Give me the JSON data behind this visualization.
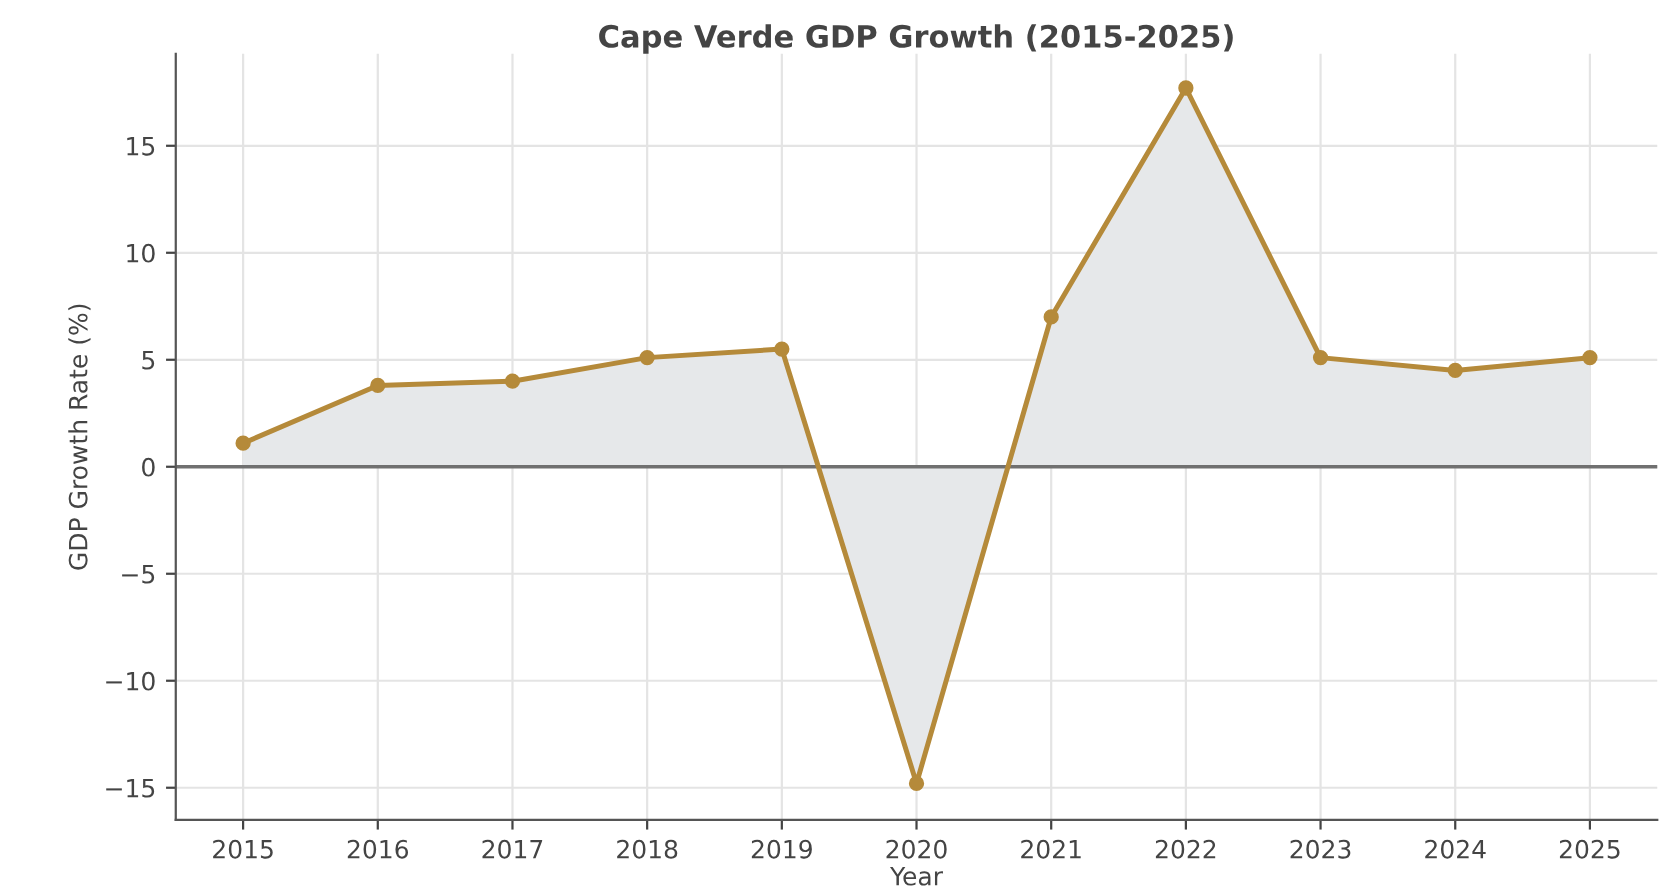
{
  "chart_data": {
    "type": "area",
    "title": "Cape Verde GDP Growth (2015-2025)",
    "xlabel": "Year",
    "ylabel": "GDP Growth Rate (%)",
    "x": [
      2015,
      2016,
      2017,
      2018,
      2019,
      2020,
      2021,
      2022,
      2023,
      2024,
      2025
    ],
    "series": [
      {
        "color": "#b58a3a",
        "values": [
          1.1,
          3.8,
          4.0,
          5.1,
          5.5,
          -14.8,
          7.0,
          17.7,
          5.1,
          4.5,
          5.1
        ]
      }
    ],
    "xlim": [
      2014.5,
      2025.5
    ],
    "xticks": [
      2015,
      2016,
      2017,
      2018,
      2019,
      2020,
      2021,
      2022,
      2023,
      2024,
      2025
    ],
    "ylim": [
      -16.5,
      19.3
    ],
    "yticks": [
      -15,
      -10,
      -5,
      0,
      5,
      10,
      15
    ],
    "ref_lines": [
      {
        "axis": "y",
        "value": 0,
        "color": "#707070"
      }
    ],
    "grid": true,
    "marker": "circle",
    "line_style": "solid"
  }
}
